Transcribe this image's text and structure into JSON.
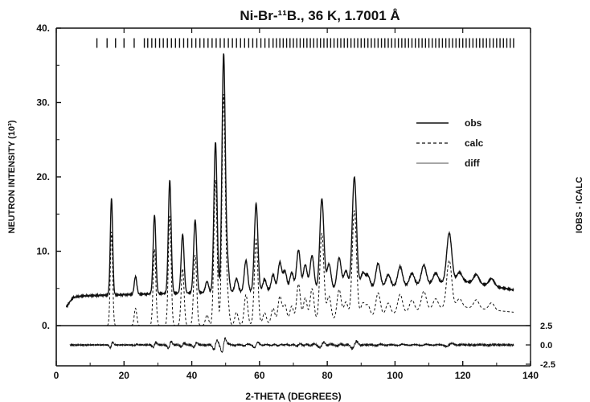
{
  "chart_data": {
    "type": "line",
    "title": "Ni-Br-¹¹B., 36 K, 1.7001 Å",
    "xlabel": "2-THETA (DEGREES)",
    "ylabel": "NEUTRON INTENSITY (10³)",
    "y2label": "IOBS - ICALC",
    "xlim": [
      0,
      140
    ],
    "ylim": [
      0,
      40
    ],
    "xticks": [
      "0",
      "20",
      "40",
      "60",
      "80",
      "100",
      "120",
      "140"
    ],
    "yticks": [
      "0.",
      "10.",
      "20.",
      "30.",
      "40."
    ],
    "diff_ticks": [
      "2.5",
      "0.0",
      "-2.5"
    ],
    "legend": {
      "position": "right",
      "entries": [
        {
          "label": "obs",
          "style": "solid"
        },
        {
          "label": "calc",
          "style": "dashed"
        },
        {
          "label": "diff",
          "style": "thin"
        }
      ]
    },
    "reflection_ticks_y": 38,
    "background_obs": [
      [
        3,
        2.5
      ],
      [
        4,
        3.2
      ],
      [
        5,
        3.8
      ],
      [
        8,
        4.0
      ],
      [
        30,
        4.3
      ],
      [
        60,
        4.6
      ],
      [
        90,
        5.0
      ],
      [
        110,
        5.6
      ],
      [
        120,
        6.0
      ],
      [
        135,
        4.8
      ]
    ],
    "background_calc": [
      [
        3,
        0
      ],
      [
        50,
        0
      ],
      [
        70,
        0.3
      ],
      [
        90,
        1.0
      ],
      [
        110,
        2.2
      ],
      [
        120,
        2.5
      ],
      [
        135,
        1.8
      ]
    ],
    "peaks": [
      {
        "x": 16.3,
        "h": 13.0
      },
      {
        "x": 23.4,
        "h": 2.4
      },
      {
        "x": 29.0,
        "h": 10.6
      },
      {
        "x": 33.5,
        "h": 15.2
      },
      {
        "x": 37.3,
        "h": 7.9
      },
      {
        "x": 41.0,
        "h": 9.8
      },
      {
        "x": 44.5,
        "h": 1.5
      },
      {
        "x": 47.0,
        "h": 20.2
      },
      {
        "x": 49.4,
        "h": 31.8
      },
      {
        "x": 50.5,
        "h": 4.0
      },
      {
        "x": 53.2,
        "h": 1.8
      },
      {
        "x": 56.0,
        "h": 4.2
      },
      {
        "x": 59.0,
        "h": 11.8
      },
      {
        "x": 61.5,
        "h": 1.6
      },
      {
        "x": 64.0,
        "h": 2.2
      },
      {
        "x": 66.0,
        "h": 3.8
      },
      {
        "x": 67.5,
        "h": 2.6
      },
      {
        "x": 69.5,
        "h": 2.4
      },
      {
        "x": 71.5,
        "h": 5.4
      },
      {
        "x": 73.5,
        "h": 3.4
      },
      {
        "x": 75.5,
        "h": 4.6
      },
      {
        "x": 78.4,
        "h": 12.2
      },
      {
        "x": 80.5,
        "h": 3.4
      },
      {
        "x": 83.5,
        "h": 4.2
      },
      {
        "x": 85.5,
        "h": 2.4
      },
      {
        "x": 88.0,
        "h": 15.0
      },
      {
        "x": 90.5,
        "h": 2.0
      },
      {
        "x": 92.0,
        "h": 1.6
      },
      {
        "x": 95.0,
        "h": 3.2
      },
      {
        "x": 98.0,
        "h": 1.6
      },
      {
        "x": 101.5,
        "h": 2.6
      },
      {
        "x": 105.0,
        "h": 1.6
      },
      {
        "x": 108.5,
        "h": 2.6
      },
      {
        "x": 112.0,
        "h": 1.4
      },
      {
        "x": 116.0,
        "h": 6.6
      },
      {
        "x": 119.0,
        "h": 1.2
      },
      {
        "x": 124.0,
        "h": 1.2
      },
      {
        "x": 128.5,
        "h": 1.0
      }
    ],
    "reflection_positions": [
      12,
      15,
      17.5,
      20,
      23,
      26,
      27,
      28.2,
      29.3,
      30.5,
      31.6,
      32.8,
      34,
      35.2,
      36.4,
      37.6,
      38.8,
      40,
      41.2,
      42.4,
      43.6,
      44.8,
      46,
      47.2,
      48.4,
      49.6,
      50.8,
      52,
      53.2,
      54.4,
      55.6,
      56.8,
      58,
      59.2,
      60.4,
      61.6,
      62.8,
      64,
      65,
      66,
      67,
      68,
      69,
      70,
      71,
      72,
      73,
      74,
      75,
      76,
      77,
      78,
      79,
      80,
      81,
      82,
      83,
      84,
      85,
      86,
      87,
      88,
      89,
      90,
      91,
      92,
      93,
      94,
      95,
      96,
      97,
      98,
      99,
      100,
      101,
      102,
      103,
      104,
      105,
      106,
      107,
      108,
      109,
      110,
      111,
      112,
      113,
      114,
      115,
      116,
      117,
      118,
      119,
      120,
      121,
      122,
      123,
      124,
      125,
      126,
      127,
      128,
      129,
      130,
      131,
      132,
      133,
      134,
      135
    ]
  }
}
